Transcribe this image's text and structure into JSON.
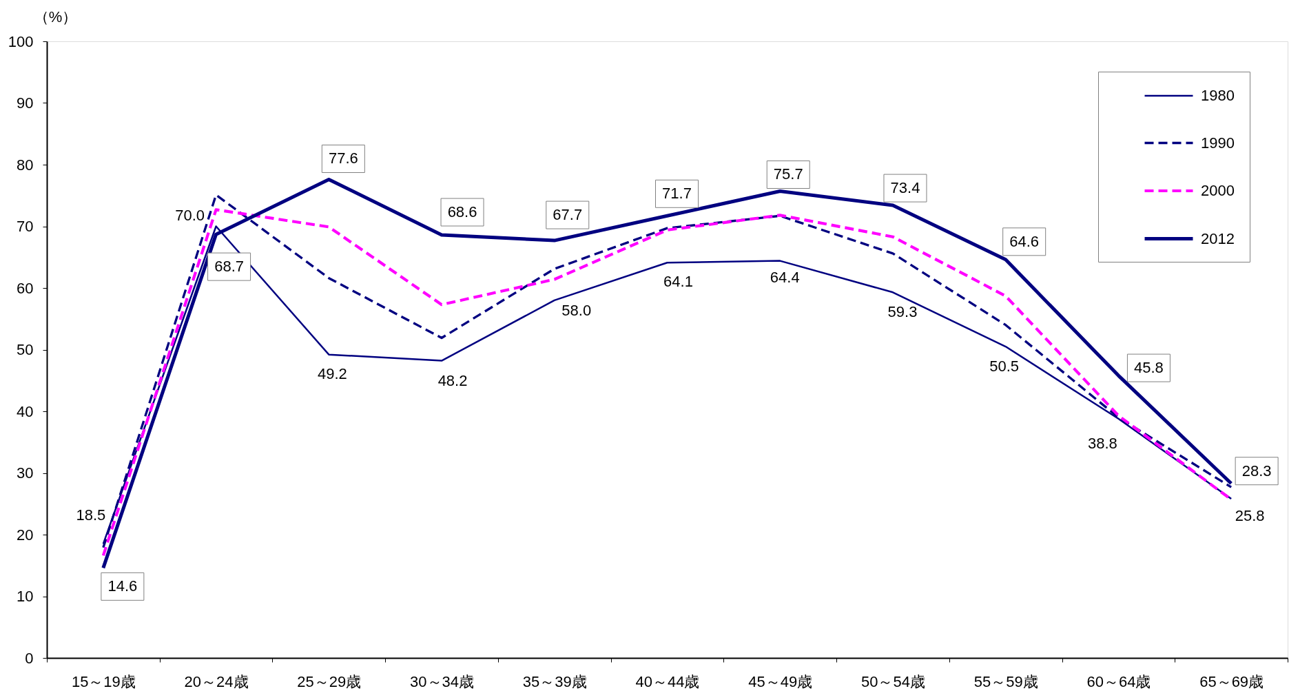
{
  "chart_data": {
    "type": "line",
    "ylabel": "（%）",
    "categories": [
      "15～19歳",
      "20～24歳",
      "25～29歳",
      "30～34歳",
      "35～39歳",
      "40～44歳",
      "45～49歳",
      "50～54歳",
      "55～59歳",
      "60～64歳",
      "65～69歳"
    ],
    "ylim": [
      0,
      100
    ],
    "yticks": [
      0,
      10,
      20,
      30,
      40,
      50,
      60,
      70,
      80,
      90,
      100
    ],
    "grid": false,
    "legend": "top right",
    "marker": "none",
    "series": [
      {
        "name": "1980",
        "color": "#000080",
        "line_style": "solid",
        "values": [
          18.5,
          70.0,
          49.2,
          48.2,
          58.0,
          64.1,
          64.4,
          59.3,
          50.5,
          38.8,
          25.8
        ],
        "value_labels": [
          "18.5",
          "70.0",
          "49.2",
          "48.2",
          "58.0",
          "64.1",
          "64.4",
          "59.3",
          "50.5",
          "38.8",
          "25.8"
        ]
      },
      {
        "name": "1990",
        "color": "#000080",
        "line_style": "dashed",
        "values": [
          17.9,
          75.1,
          61.6,
          51.9,
          63.1,
          69.7,
          71.7,
          65.6,
          54.0,
          39.0,
          27.7
        ]
      },
      {
        "name": "2000",
        "color": "#ff00ff",
        "line_style": "dashed",
        "values": [
          16.6,
          72.7,
          69.9,
          57.3,
          61.4,
          69.4,
          71.8,
          68.3,
          58.7,
          39.3,
          25.7
        ]
      },
      {
        "name": "2012",
        "color": "#000080",
        "line_style": "solid",
        "values": [
          14.6,
          68.7,
          77.6,
          68.6,
          67.7,
          71.7,
          75.7,
          73.4,
          64.6,
          45.8,
          28.3
        ],
        "value_labels": [
          "14.6",
          "68.7",
          "77.6",
          "68.6",
          "67.7",
          "71.7",
          "75.7",
          "73.4",
          "64.6",
          "45.8",
          "28.3"
        ]
      }
    ]
  }
}
